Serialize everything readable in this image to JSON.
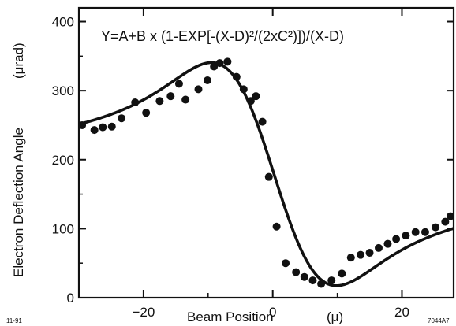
{
  "chart_data": {
    "type": "scatter",
    "title": "",
    "xlabel": "Beam Position",
    "xlabel_unit": "(μ)",
    "ylabel": "Electron Deflection Angle",
    "ylabel_unit": "(μrad)",
    "xlim": [
      -30,
      28
    ],
    "ylim": [
      0,
      420
    ],
    "xticks": [
      -20,
      0,
      20
    ],
    "yticks": [
      0,
      100,
      200,
      300,
      400
    ],
    "grid": false,
    "legend": "none",
    "annotations": {
      "formula": "Y=A+B x (1-EXP[-(X-D)²/(2xC²)])/(X-D)",
      "corner_left": "11-91",
      "corner_right": "7044A7"
    },
    "series": [
      {
        "kind": "points",
        "x": [
          -29.5,
          -27.6,
          -26.3,
          -24.9,
          -23.4,
          -21.3,
          -19.6,
          -17.5,
          -15.8,
          -14.5,
          -13.5,
          -11.5,
          -10.1,
          -9.1,
          -8.2,
          -7.0,
          -5.6,
          -4.5,
          -3.4,
          -2.6,
          -1.6,
          -0.6,
          0.6,
          2.0,
          3.6,
          4.9,
          6.2,
          7.5,
          9.1,
          10.7,
          12.1,
          13.6,
          15.0,
          16.4,
          17.8,
          19.1,
          20.6,
          22.1,
          23.6,
          25.2,
          26.7,
          28.0
        ],
        "y": [
          250,
          243,
          247,
          248,
          260,
          283,
          268,
          285,
          292,
          310,
          287,
          302,
          315,
          335,
          340,
          342,
          320,
          302,
          285,
          292,
          255,
          175,
          103,
          50,
          37,
          30,
          25,
          20,
          25,
          35,
          58,
          62,
          65,
          72,
          78,
          85,
          90,
          95,
          95,
          102,
          110,
          118
        ]
      },
      {
        "kind": "fit-line",
        "params": {
          "A": 179.04,
          "B": -2185.3,
          "C": 6.1,
          "D": 0.2
        }
      }
    ]
  }
}
